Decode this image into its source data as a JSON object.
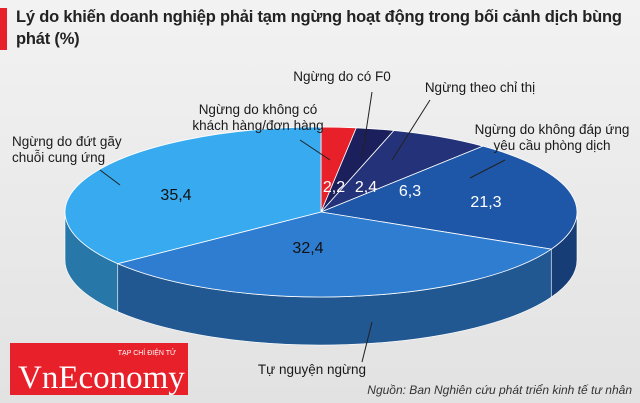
{
  "chart_data": {
    "type": "pie",
    "title": "Lý do khiến doanh nghiệp phải tạm ngừng hoạt động trong bối cảnh dịch bùng phát (%)",
    "categories": [
      "Ngừng do không có\nkhách hàng/đơn hàng",
      "Ngừng do có F0",
      "Ngừng theo chỉ thị",
      "Ngừng do không đáp ứng\nyêu cầu phòng dịch",
      "Tự nguyện ngừng",
      "Ngừng do đứt gãy\nchuỗi cung ứng"
    ],
    "values": [
      2.2,
      2.4,
      6.3,
      21.3,
      32.4,
      35.4
    ],
    "value_labels": [
      "2,2",
      "2,4",
      "6,3",
      "21,3",
      "32,4",
      "35,4"
    ],
    "colors": [
      "#e8202a",
      "#1b1f5c",
      "#233279",
      "#1f57a8",
      "#2f7dd0",
      "#37aaf0"
    ],
    "source": "Nguồn: Ban Nghiên cứu phát triển kinh tế tư nhân",
    "logo": "VnEconomy",
    "logo_tagline": "TẠP CHÍ ĐIỆN TỬ"
  }
}
